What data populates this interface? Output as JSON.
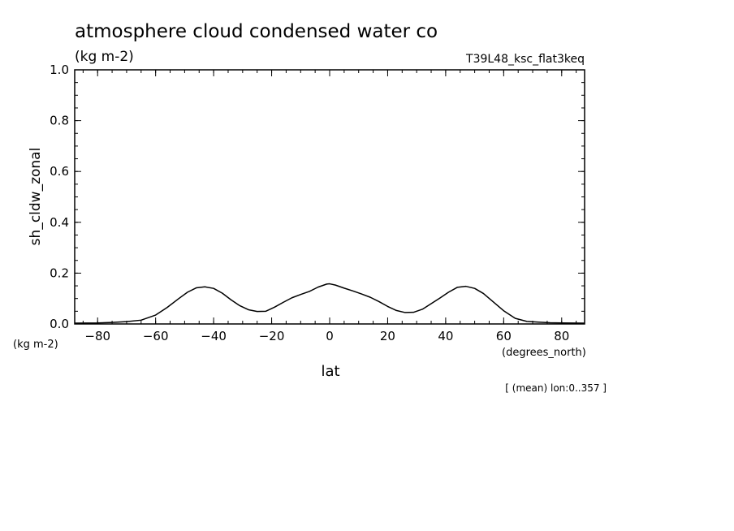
{
  "chart_data": {
    "type": "line",
    "title": "atmosphere cloud condensed water co",
    "units": "(kg m-2)",
    "run_label": "T39L48_ksc_flat3keq",
    "ylabel": "sh_cldw_zonal",
    "y_units": "(kg m-2)",
    "xlabel": "lat",
    "x_units": "(degrees_north)",
    "footnote": "[ (mean) lon:0..357 ]",
    "xlim": [
      -87.9,
      87.9
    ],
    "ylim": [
      0.0,
      1.0
    ],
    "x_ticks": [
      -80,
      -60,
      -40,
      -20,
      0,
      20,
      40,
      60,
      80
    ],
    "x_tick_labels": [
      "−80",
      "−60",
      "−40",
      "−20",
      "0",
      "20",
      "40",
      "60",
      "80"
    ],
    "y_ticks": [
      0.0,
      0.2,
      0.4,
      0.6,
      0.8,
      1.0
    ],
    "y_tick_labels": [
      "0.0",
      "0.2",
      "0.4",
      "0.6",
      "0.8",
      "1.0"
    ],
    "grid": false,
    "line_color": "#000000",
    "series": [
      {
        "x": [
          -87.9,
          -80,
          -75,
          -70,
          -65,
          -60,
          -56,
          -52,
          -49,
          -46,
          -43,
          -40,
          -37,
          -34,
          -31,
          -28,
          -25,
          -22,
          -19,
          -16,
          -13,
          -10,
          -7,
          -4,
          -1,
          0,
          2,
          5,
          8,
          11,
          14,
          17,
          20,
          23,
          26,
          29,
          32,
          35,
          38,
          41,
          44,
          47,
          50,
          53,
          56,
          60,
          64,
          68,
          72,
          76,
          80,
          87.9
        ],
        "y": [
          0.003,
          0.004,
          0.006,
          0.009,
          0.015,
          0.035,
          0.065,
          0.1,
          0.125,
          0.142,
          0.146,
          0.14,
          0.121,
          0.095,
          0.072,
          0.056,
          0.049,
          0.05,
          0.066,
          0.085,
          0.103,
          0.116,
          0.128,
          0.145,
          0.157,
          0.158,
          0.153,
          0.141,
          0.13,
          0.118,
          0.105,
          0.088,
          0.069,
          0.053,
          0.045,
          0.046,
          0.058,
          0.08,
          0.102,
          0.125,
          0.144,
          0.148,
          0.14,
          0.12,
          0.091,
          0.052,
          0.022,
          0.01,
          0.007,
          0.005,
          0.004,
          0.003
        ]
      }
    ]
  }
}
